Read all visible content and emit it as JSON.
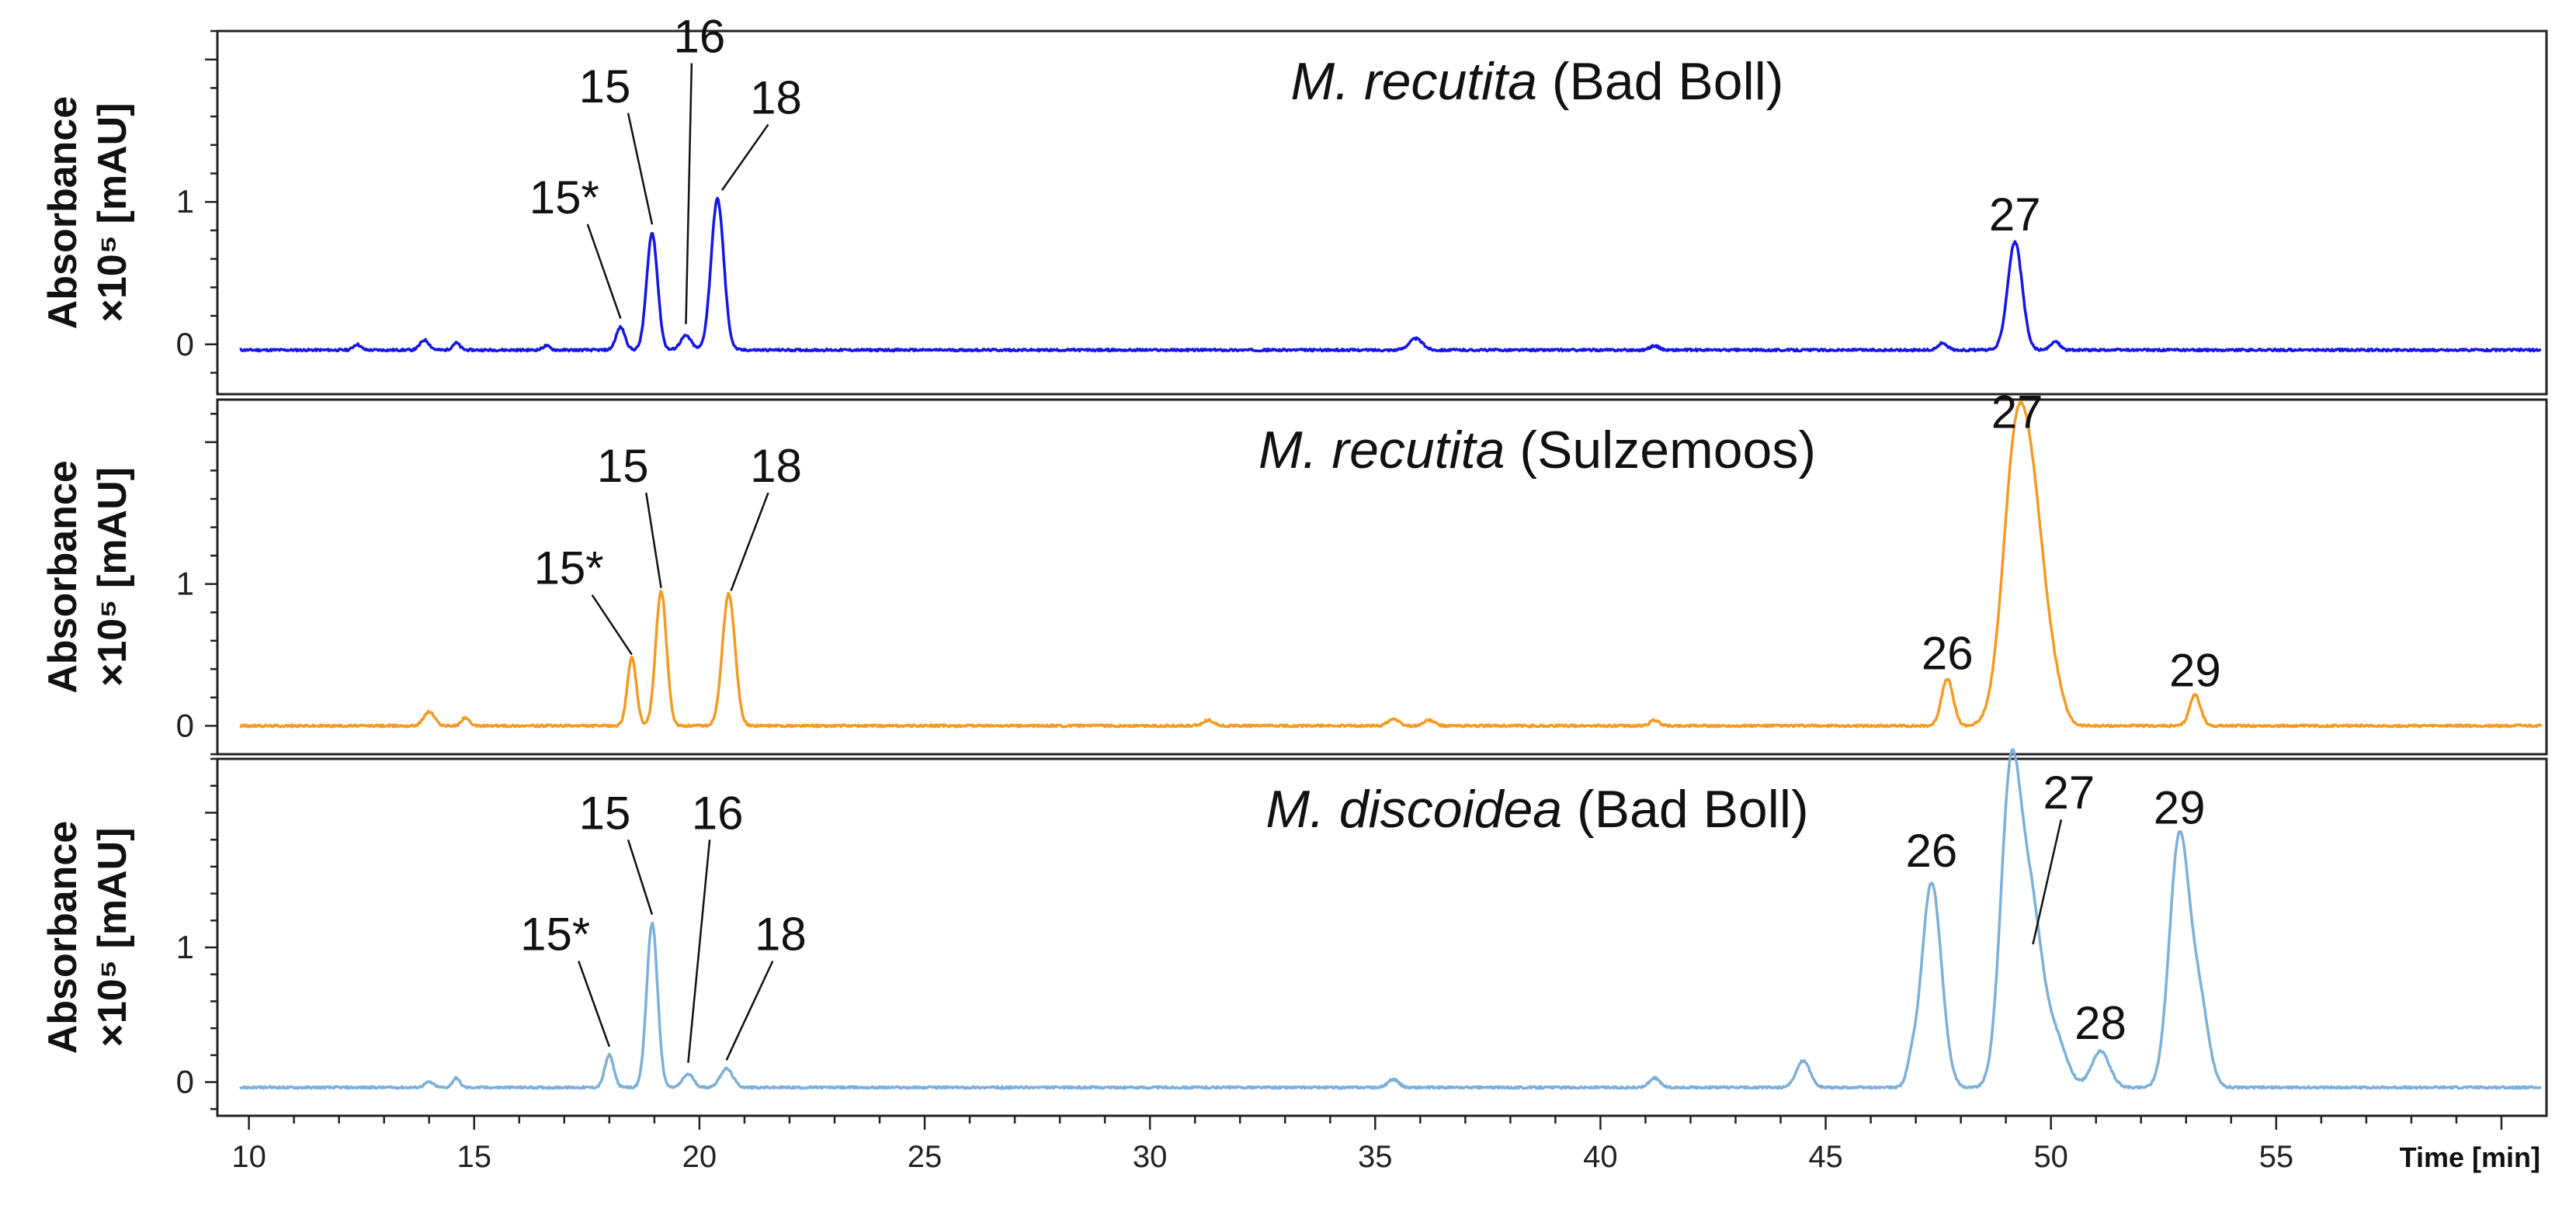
{
  "chart_data": {
    "type": "line",
    "xlabel": "Time [min]",
    "xlim": [
      9.3,
      61
    ],
    "xticks": [
      10,
      15,
      20,
      25,
      30,
      35,
      40,
      45,
      50,
      55
    ],
    "panels": [
      {
        "id": "bad-boll-recutita",
        "title_species": "M. recutita",
        "title_site": "(Bad Boll)",
        "ylabel_line1": "Absorbance",
        "ylabel_line2": "×10⁵ [mAU]",
        "ylim": [
          -0.35,
          2.2
        ],
        "yticks": [
          0,
          1
        ],
        "color": "#1515e6",
        "baseline": -0.04,
        "peaks": [
          {
            "x": 12.4,
            "h": 0.04,
            "w": 0.08
          },
          {
            "x": 13.9,
            "h": 0.07,
            "w": 0.1
          },
          {
            "x": 14.6,
            "h": 0.05,
            "w": 0.08
          },
          {
            "x": 16.6,
            "h": 0.03,
            "w": 0.08
          },
          {
            "x": 18.25,
            "h": 0.16,
            "w": 0.1
          },
          {
            "x": 18.95,
            "h": 0.82,
            "w": 0.12
          },
          {
            "x": 19.7,
            "h": 0.1,
            "w": 0.12
          },
          {
            "x": 20.4,
            "h": 1.06,
            "w": 0.14
          },
          {
            "x": 35.9,
            "h": 0.08,
            "w": 0.15
          },
          {
            "x": 41.2,
            "h": 0.03,
            "w": 0.1
          },
          {
            "x": 47.6,
            "h": 0.05,
            "w": 0.1
          },
          {
            "x": 49.2,
            "h": 0.76,
            "w": 0.16
          },
          {
            "x": 50.1,
            "h": 0.06,
            "w": 0.1
          }
        ],
        "labels": [
          {
            "text": "15*",
            "peak_x": 18.25,
            "peak_y": 0.16,
            "lx": 17.0,
            "ly": 0.92
          },
          {
            "text": "15",
            "peak_x": 18.95,
            "peak_y": 0.82,
            "lx": 17.9,
            "ly": 1.7
          },
          {
            "text": "16",
            "peak_x": 19.7,
            "peak_y": 0.12,
            "lx": 20.0,
            "ly": 2.05
          },
          {
            "text": "18",
            "peak_x": 20.5,
            "peak_y": 1.06,
            "lx": 21.7,
            "ly": 1.62
          },
          {
            "text": "27",
            "peak_x": 49.2,
            "peak_y": 0.76,
            "lx": 49.2,
            "ly": 0.8
          }
        ]
      },
      {
        "id": "sulzemoos-recutita",
        "title_species": "M. recutita",
        "title_site": "(Sulzemoos)",
        "ylabel_line1": "Absorbance",
        "ylabel_line2": "×10⁵ [mAU]",
        "ylim": [
          -0.2,
          2.3
        ],
        "yticks": [
          0,
          1
        ],
        "color": "#f59a23",
        "baseline": 0.0,
        "peaks": [
          {
            "x": 14.0,
            "h": 0.1,
            "w": 0.12
          },
          {
            "x": 14.8,
            "h": 0.06,
            "w": 0.08
          },
          {
            "x": 18.5,
            "h": 0.48,
            "w": 0.1
          },
          {
            "x": 19.15,
            "h": 0.95,
            "w": 0.12
          },
          {
            "x": 20.65,
            "h": 0.93,
            "w": 0.14
          },
          {
            "x": 31.3,
            "h": 0.04,
            "w": 0.12
          },
          {
            "x": 35.4,
            "h": 0.05,
            "w": 0.12
          },
          {
            "x": 36.2,
            "h": 0.04,
            "w": 0.12
          },
          {
            "x": 41.2,
            "h": 0.04,
            "w": 0.1
          },
          {
            "x": 47.7,
            "h": 0.33,
            "w": 0.13
          },
          {
            "x": 49.25,
            "h": 2.05,
            "w": 0.3
          },
          {
            "x": 49.7,
            "h": 0.9,
            "w": 0.25
          },
          {
            "x": 50.1,
            "h": 0.2,
            "w": 0.2
          },
          {
            "x": 53.2,
            "h": 0.22,
            "w": 0.12
          }
        ],
        "labels": [
          {
            "text": "15*",
            "peak_x": 18.5,
            "peak_y": 0.48,
            "lx": 17.1,
            "ly": 1.0
          },
          {
            "text": "15",
            "peak_x": 19.15,
            "peak_y": 0.95,
            "lx": 18.3,
            "ly": 1.72
          },
          {
            "text": "18",
            "peak_x": 20.7,
            "peak_y": 0.93,
            "lx": 21.7,
            "ly": 1.72
          },
          {
            "text": "26",
            "peak_x": 47.7,
            "peak_y": 0.33,
            "lx": 47.7,
            "ly": 0.4
          },
          {
            "text": "27",
            "peak_x": 49.25,
            "peak_y": 2.05,
            "lx": 49.25,
            "ly": 2.1
          },
          {
            "text": "29",
            "peak_x": 53.2,
            "peak_y": 0.22,
            "lx": 53.2,
            "ly": 0.28
          }
        ]
      },
      {
        "id": "bad-boll-discoidea",
        "title_species": "M. discoidea",
        "title_site": "(Bad Boll)",
        "ylabel_line1": "Absorbance",
        "ylabel_line2": "×10⁵ [mAU]",
        "ylim": [
          -0.25,
          2.4
        ],
        "yticks": [
          0,
          1
        ],
        "color": "#7bb0d9",
        "baseline": -0.04,
        "peaks": [
          {
            "x": 14.0,
            "h": 0.04,
            "w": 0.1
          },
          {
            "x": 14.6,
            "h": 0.07,
            "w": 0.08
          },
          {
            "x": 18.0,
            "h": 0.24,
            "w": 0.1
          },
          {
            "x": 18.95,
            "h": 1.22,
            "w": 0.12
          },
          {
            "x": 19.75,
            "h": 0.1,
            "w": 0.12
          },
          {
            "x": 20.6,
            "h": 0.14,
            "w": 0.14
          },
          {
            "x": 35.4,
            "h": 0.06,
            "w": 0.12
          },
          {
            "x": 41.2,
            "h": 0.07,
            "w": 0.12
          },
          {
            "x": 44.5,
            "h": 0.2,
            "w": 0.15
          },
          {
            "x": 46.9,
            "h": 0.12,
            "w": 0.1
          },
          {
            "x": 47.35,
            "h": 1.52,
            "w": 0.22
          },
          {
            "x": 49.1,
            "h": 2.2,
            "w": 0.22
          },
          {
            "x": 49.55,
            "h": 1.3,
            "w": 0.25
          },
          {
            "x": 50.1,
            "h": 0.35,
            "w": 0.25
          },
          {
            "x": 51.1,
            "h": 0.27,
            "w": 0.2
          },
          {
            "x": 52.85,
            "h": 1.85,
            "w": 0.22
          },
          {
            "x": 53.3,
            "h": 0.6,
            "w": 0.2
          }
        ],
        "labels": [
          {
            "text": "15*",
            "peak_x": 18.0,
            "peak_y": 0.24,
            "lx": 16.8,
            "ly": 0.98
          },
          {
            "text": "15",
            "peak_x": 18.95,
            "peak_y": 1.22,
            "lx": 17.9,
            "ly": 1.88
          },
          {
            "text": "16",
            "peak_x": 19.75,
            "peak_y": 0.12,
            "lx": 20.4,
            "ly": 1.88
          },
          {
            "text": "18",
            "peak_x": 20.6,
            "peak_y": 0.14,
            "lx": 21.8,
            "ly": 0.98
          },
          {
            "text": "26",
            "peak_x": 47.35,
            "peak_y": 1.52,
            "lx": 47.35,
            "ly": 1.6
          },
          {
            "text": "27",
            "peak_x": 49.6,
            "peak_y": 1.0,
            "lx": 50.4,
            "ly": 2.03
          },
          {
            "text": "28",
            "peak_x": 51.1,
            "peak_y": 0.27,
            "lx": 51.1,
            "ly": 0.32
          },
          {
            "text": "29",
            "peak_x": 52.85,
            "peak_y": 1.85,
            "lx": 52.85,
            "ly": 1.92
          }
        ]
      }
    ]
  }
}
